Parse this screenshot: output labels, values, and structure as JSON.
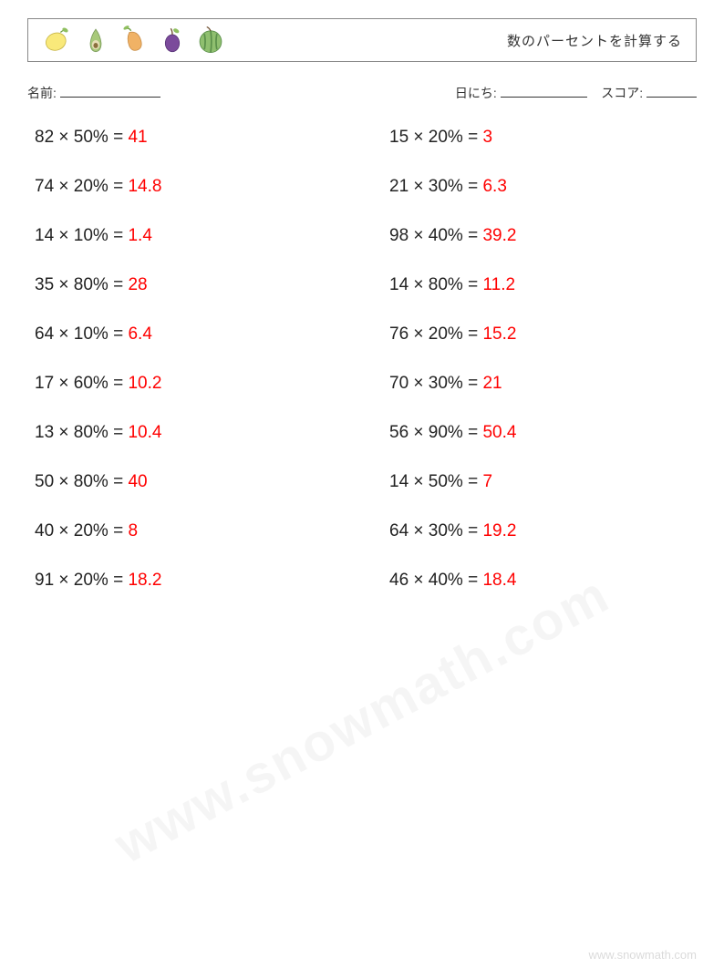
{
  "header": {
    "title": "数のパーセントを計算する"
  },
  "info": {
    "name_label": "名前:",
    "date_label": "日にち:",
    "score_label": "スコア:"
  },
  "problems": {
    "col1": [
      {
        "n": "82",
        "p": "50",
        "a": "41"
      },
      {
        "n": "74",
        "p": "20",
        "a": "14.8"
      },
      {
        "n": "14",
        "p": "10",
        "a": "1.4"
      },
      {
        "n": "35",
        "p": "80",
        "a": "28"
      },
      {
        "n": "64",
        "p": "10",
        "a": "6.4"
      },
      {
        "n": "17",
        "p": "60",
        "a": "10.2"
      },
      {
        "n": "13",
        "p": "80",
        "a": "10.4"
      },
      {
        "n": "50",
        "p": "80",
        "a": "40"
      },
      {
        "n": "40",
        "p": "20",
        "a": "8"
      },
      {
        "n": "91",
        "p": "20",
        "a": "18.2"
      }
    ],
    "col2": [
      {
        "n": "15",
        "p": "20",
        "a": "3"
      },
      {
        "n": "21",
        "p": "30",
        "a": "6.3"
      },
      {
        "n": "98",
        "p": "40",
        "a": "39.2"
      },
      {
        "n": "14",
        "p": "80",
        "a": "11.2"
      },
      {
        "n": "76",
        "p": "20",
        "a": "15.2"
      },
      {
        "n": "70",
        "p": "30",
        "a": "21"
      },
      {
        "n": "56",
        "p": "90",
        "a": "50.4"
      },
      {
        "n": "14",
        "p": "50",
        "a": "7"
      },
      {
        "n": "64",
        "p": "30",
        "a": "19.2"
      },
      {
        "n": "46",
        "p": "40",
        "a": "18.4"
      }
    ]
  },
  "footer": "www.snowmath.com",
  "watermark": "www.snowmath.com",
  "colors": {
    "answer": "#ff0000",
    "text": "#222222",
    "border": "#888888",
    "background": "#ffffff"
  },
  "fruits": {
    "lemon_fill": "#f9e97a",
    "lemon_stroke": "#6b9b3a",
    "avocado_fill": "#a8c97a",
    "avocado_pit": "#8b6f3e",
    "mango_fill": "#f0b265",
    "plum_fill": "#7b4a9b",
    "melon_fill": "#8fbf6f",
    "melon_stripe": "#5a8f4a"
  }
}
